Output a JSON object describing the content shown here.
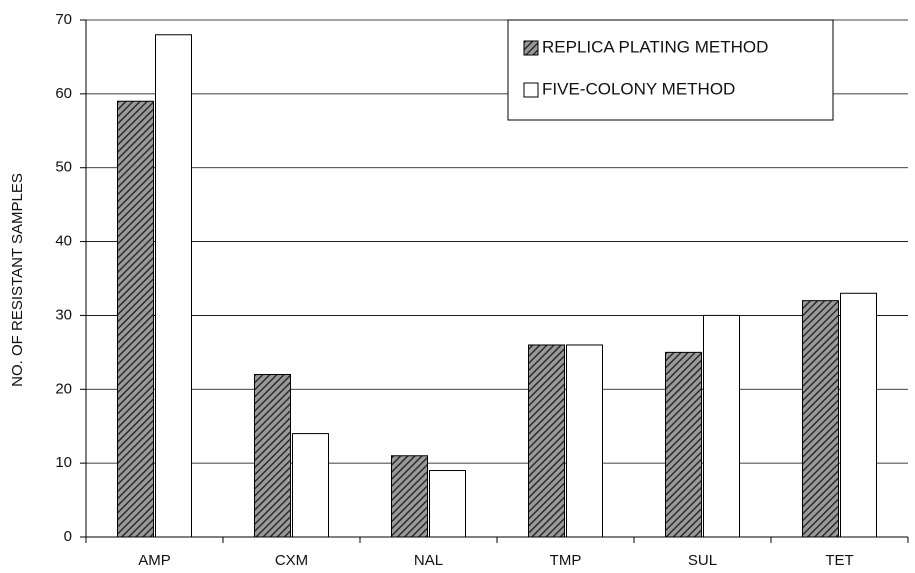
{
  "chart_data": {
    "type": "bar",
    "y_label": "NO. OF RESISTANT SAMPLES",
    "categories": [
      "AMP",
      "CXM",
      "NAL",
      "TMP",
      "SUL",
      "TET"
    ],
    "series": [
      {
        "name": "REPLICA PLATING METHOD",
        "color": "#4a4a4a",
        "hatch": true,
        "values": [
          59,
          22,
          11,
          26,
          25,
          32
        ]
      },
      {
        "name": "FIVE-COLONY METHOD",
        "color": "#ffffff",
        "hatch": false,
        "values": [
          68,
          14,
          9,
          26,
          30,
          33
        ]
      }
    ],
    "ylim": [
      0,
      70
    ],
    "yticks": [
      0,
      10,
      20,
      30,
      40,
      50,
      60,
      70
    ],
    "grid": true,
    "legend": "top-right"
  }
}
